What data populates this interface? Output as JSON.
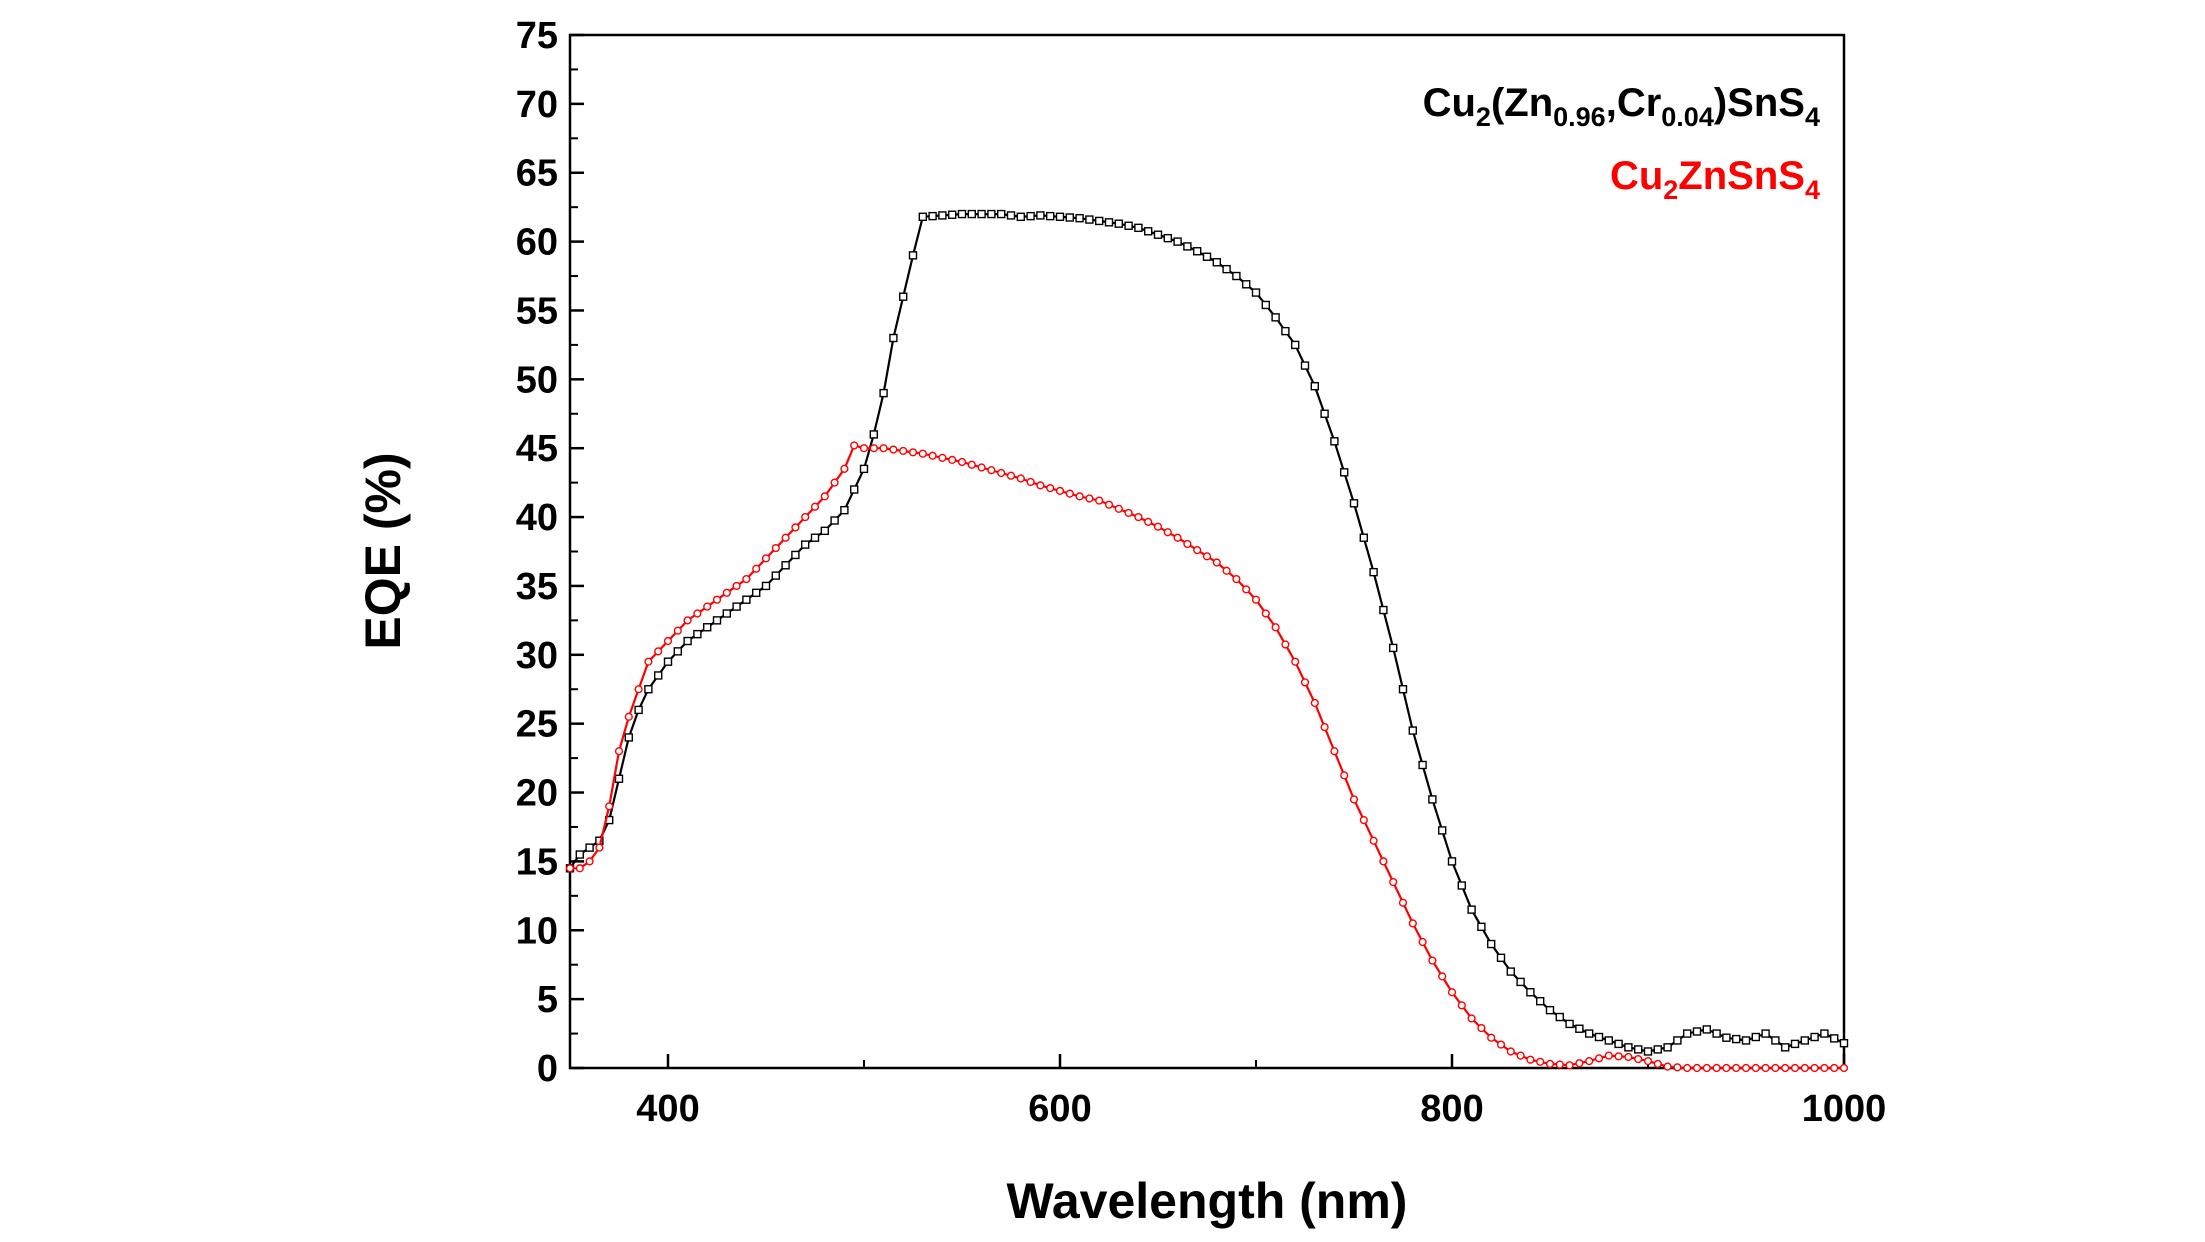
{
  "chart_data": {
    "type": "line",
    "title": "",
    "xlabel": "Wavelength (nm)",
    "ylabel": "EQE (%)",
    "xlim": [
      350,
      1000
    ],
    "ylim": [
      0,
      75
    ],
    "xticks": [
      400,
      600,
      800,
      1000
    ],
    "yticks": [
      0,
      5,
      10,
      15,
      20,
      25,
      30,
      35,
      40,
      45,
      50,
      55,
      60,
      65,
      70,
      75
    ],
    "grid": false,
    "legend_position": "top-right",
    "legend": [
      {
        "series": "Cu2(Zn0.96,Cr0.04)SnS4",
        "color": "#000000",
        "parts": [
          {
            "t": "Cu",
            "s": ""
          },
          {
            "t": "2",
            "s": "sub"
          },
          {
            "t": "(Zn",
            "s": ""
          },
          {
            "t": "0.96",
            "s": "sub"
          },
          {
            "t": ",Cr",
            "s": ""
          },
          {
            "t": "0.04",
            "s": "sub"
          },
          {
            "t": ")SnS",
            "s": ""
          },
          {
            "t": "4",
            "s": "sub"
          }
        ]
      },
      {
        "series": "Cu2ZnSnS4",
        "color": "#ff0000",
        "parts": [
          {
            "t": "Cu",
            "s": ""
          },
          {
            "t": "2",
            "s": "sub"
          },
          {
            "t": "ZnSnS",
            "s": ""
          },
          {
            "t": "4",
            "s": "sub"
          }
        ]
      }
    ],
    "series": [
      {
        "name": "Cu2(Zn0.96,Cr0.04)SnS4",
        "color": "#000000",
        "marker": "square",
        "points": [
          [
            350,
            14.5
          ],
          [
            355,
            15.5
          ],
          [
            360,
            16
          ],
          [
            365,
            16.5
          ],
          [
            370,
            18
          ],
          [
            375,
            21
          ],
          [
            380,
            24
          ],
          [
            385,
            26
          ],
          [
            390,
            27.5
          ],
          [
            395,
            28.5
          ],
          [
            400,
            29.5
          ],
          [
            410,
            31
          ],
          [
            420,
            32
          ],
          [
            430,
            33
          ],
          [
            440,
            34
          ],
          [
            450,
            35
          ],
          [
            460,
            36.5
          ],
          [
            470,
            38
          ],
          [
            480,
            39
          ],
          [
            490,
            40.5
          ],
          [
            500,
            43.5
          ],
          [
            505,
            46
          ],
          [
            510,
            49
          ],
          [
            515,
            53
          ],
          [
            520,
            56
          ],
          [
            525,
            59
          ],
          [
            530,
            61.8
          ],
          [
            540,
            61.9
          ],
          [
            550,
            62
          ],
          [
            560,
            62
          ],
          [
            570,
            62
          ],
          [
            580,
            61.8
          ],
          [
            590,
            61.9
          ],
          [
            600,
            61.8
          ],
          [
            610,
            61.7
          ],
          [
            620,
            61.5
          ],
          [
            630,
            61.3
          ],
          [
            640,
            61
          ],
          [
            650,
            60.5
          ],
          [
            660,
            60
          ],
          [
            670,
            59.3
          ],
          [
            680,
            58.5
          ],
          [
            690,
            57.5
          ],
          [
            700,
            56.3
          ],
          [
            710,
            54.5
          ],
          [
            720,
            52.5
          ],
          [
            730,
            49.5
          ],
          [
            740,
            45.5
          ],
          [
            750,
            41
          ],
          [
            760,
            36
          ],
          [
            770,
            30.5
          ],
          [
            780,
            24.5
          ],
          [
            790,
            19.5
          ],
          [
            800,
            15
          ],
          [
            810,
            11.5
          ],
          [
            820,
            9
          ],
          [
            830,
            7
          ],
          [
            840,
            5.5
          ],
          [
            850,
            4.2
          ],
          [
            860,
            3.2
          ],
          [
            870,
            2.5
          ],
          [
            880,
            2
          ],
          [
            890,
            1.5
          ],
          [
            900,
            1.2
          ],
          [
            910,
            1.5
          ],
          [
            920,
            2.5
          ],
          [
            930,
            2.8
          ],
          [
            940,
            2.2
          ],
          [
            950,
            2
          ],
          [
            960,
            2.5
          ],
          [
            970,
            1.5
          ],
          [
            980,
            2
          ],
          [
            990,
            2.5
          ],
          [
            1000,
            1.8
          ]
        ]
      },
      {
        "name": "Cu2ZnSnS4",
        "color": "#ff0000",
        "marker": "circle",
        "points": [
          [
            350,
            14.5
          ],
          [
            355,
            14.5
          ],
          [
            360,
            15
          ],
          [
            365,
            16
          ],
          [
            370,
            19
          ],
          [
            375,
            23
          ],
          [
            380,
            25.5
          ],
          [
            385,
            27.5
          ],
          [
            390,
            29.5
          ],
          [
            400,
            31
          ],
          [
            410,
            32.5
          ],
          [
            420,
            33.5
          ],
          [
            430,
            34.5
          ],
          [
            440,
            35.5
          ],
          [
            450,
            37
          ],
          [
            460,
            38.5
          ],
          [
            470,
            40
          ],
          [
            480,
            41.5
          ],
          [
            490,
            43.5
          ],
          [
            495,
            45.2
          ],
          [
            500,
            45
          ],
          [
            510,
            45
          ],
          [
            520,
            44.8
          ],
          [
            530,
            44.6
          ],
          [
            540,
            44.3
          ],
          [
            550,
            44
          ],
          [
            560,
            43.6
          ],
          [
            570,
            43.2
          ],
          [
            580,
            42.8
          ],
          [
            590,
            42.3
          ],
          [
            600,
            41.9
          ],
          [
            610,
            41.5
          ],
          [
            620,
            41.2
          ],
          [
            630,
            40.6
          ],
          [
            640,
            40
          ],
          [
            650,
            39.3
          ],
          [
            660,
            38.5
          ],
          [
            670,
            37.6
          ],
          [
            680,
            36.7
          ],
          [
            690,
            35.5
          ],
          [
            700,
            34
          ],
          [
            710,
            32
          ],
          [
            720,
            29.5
          ],
          [
            730,
            26.5
          ],
          [
            740,
            23
          ],
          [
            750,
            19.5
          ],
          [
            760,
            16.5
          ],
          [
            770,
            13.5
          ],
          [
            780,
            10.5
          ],
          [
            790,
            7.8
          ],
          [
            800,
            5.5
          ],
          [
            810,
            3.6
          ],
          [
            820,
            2.2
          ],
          [
            830,
            1.2
          ],
          [
            840,
            0.6
          ],
          [
            850,
            0.3
          ],
          [
            860,
            0.2
          ],
          [
            870,
            0.5
          ],
          [
            880,
            0.9
          ],
          [
            890,
            0.8
          ],
          [
            900,
            0.5
          ],
          [
            910,
            0.1
          ],
          [
            920,
            0
          ],
          [
            940,
            0
          ],
          [
            960,
            0
          ],
          [
            980,
            0
          ],
          [
            1000,
            0
          ]
        ]
      }
    ]
  }
}
